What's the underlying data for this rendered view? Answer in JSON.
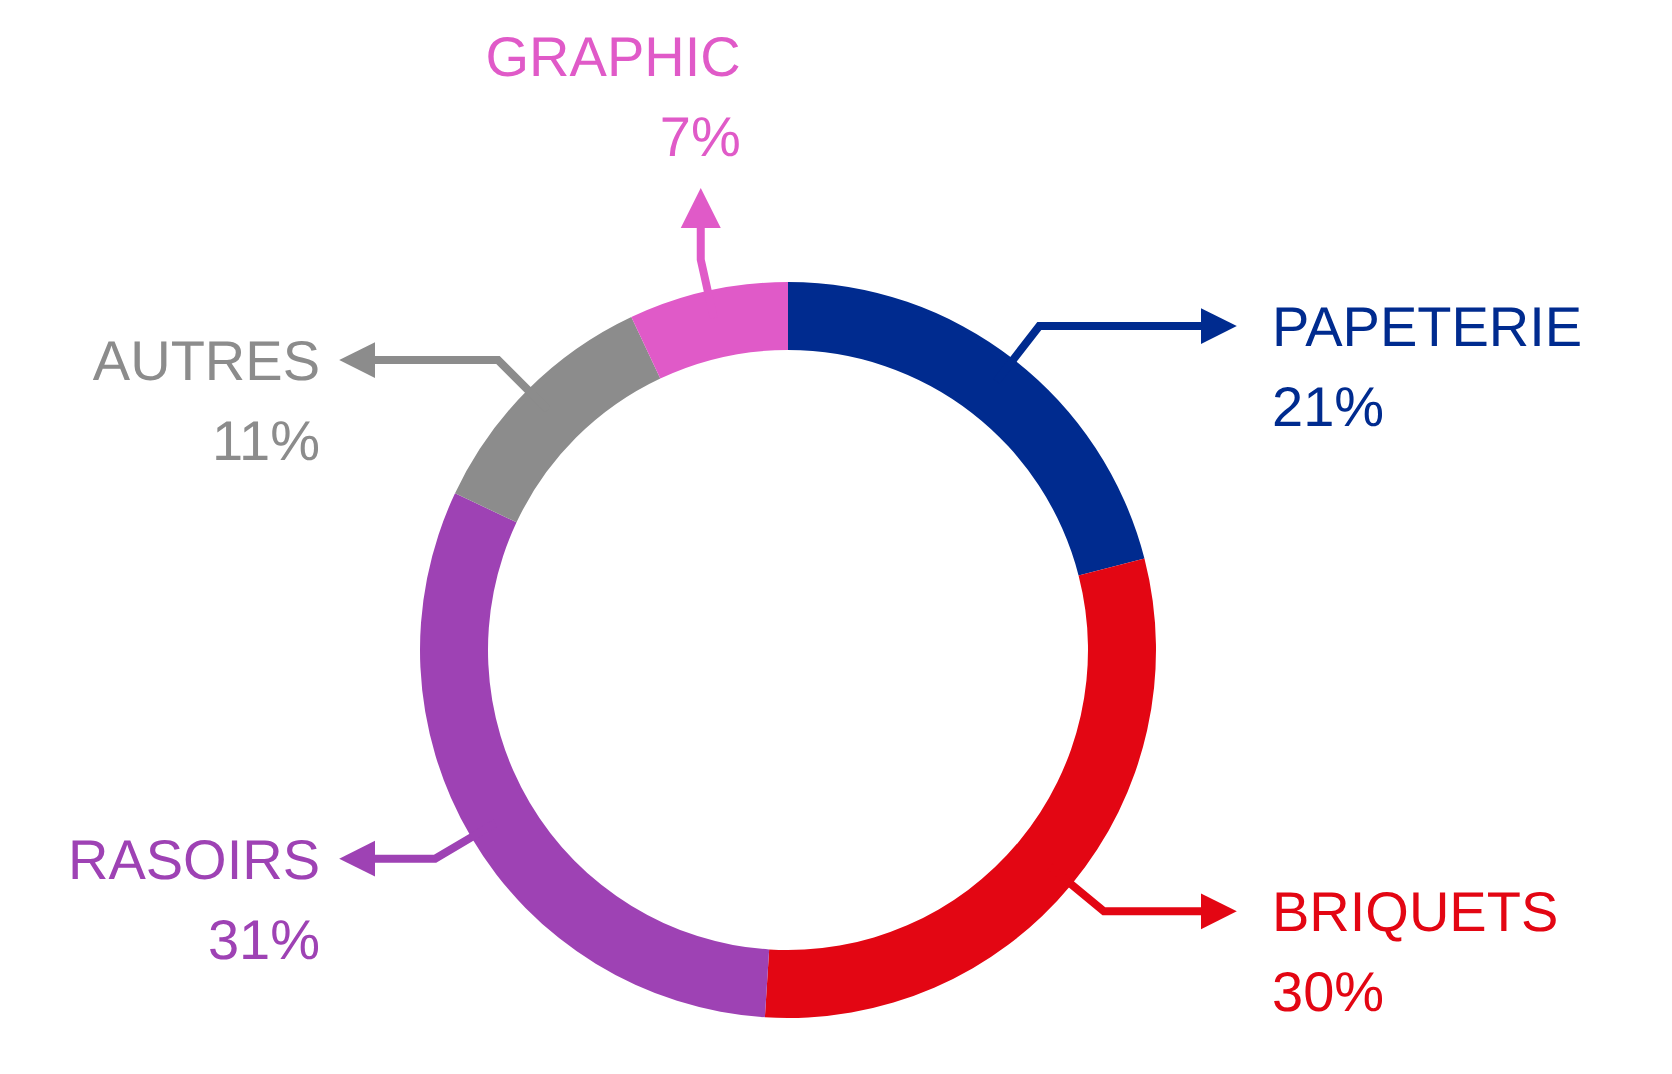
{
  "chart_data": {
    "type": "donut",
    "categories": [
      "PAPETERIE",
      "BRIQUETS",
      "RASOIRS",
      "AUTRES",
      "GRAPHIC"
    ],
    "values": [
      21,
      30,
      31,
      11,
      7
    ],
    "value_labels": [
      "21%",
      "30%",
      "31%",
      "11%",
      "7%"
    ],
    "colors": [
      "#002b8f",
      "#e30613",
      "#9e42b4",
      "#8c8c8c",
      "#e05ac8"
    ]
  }
}
